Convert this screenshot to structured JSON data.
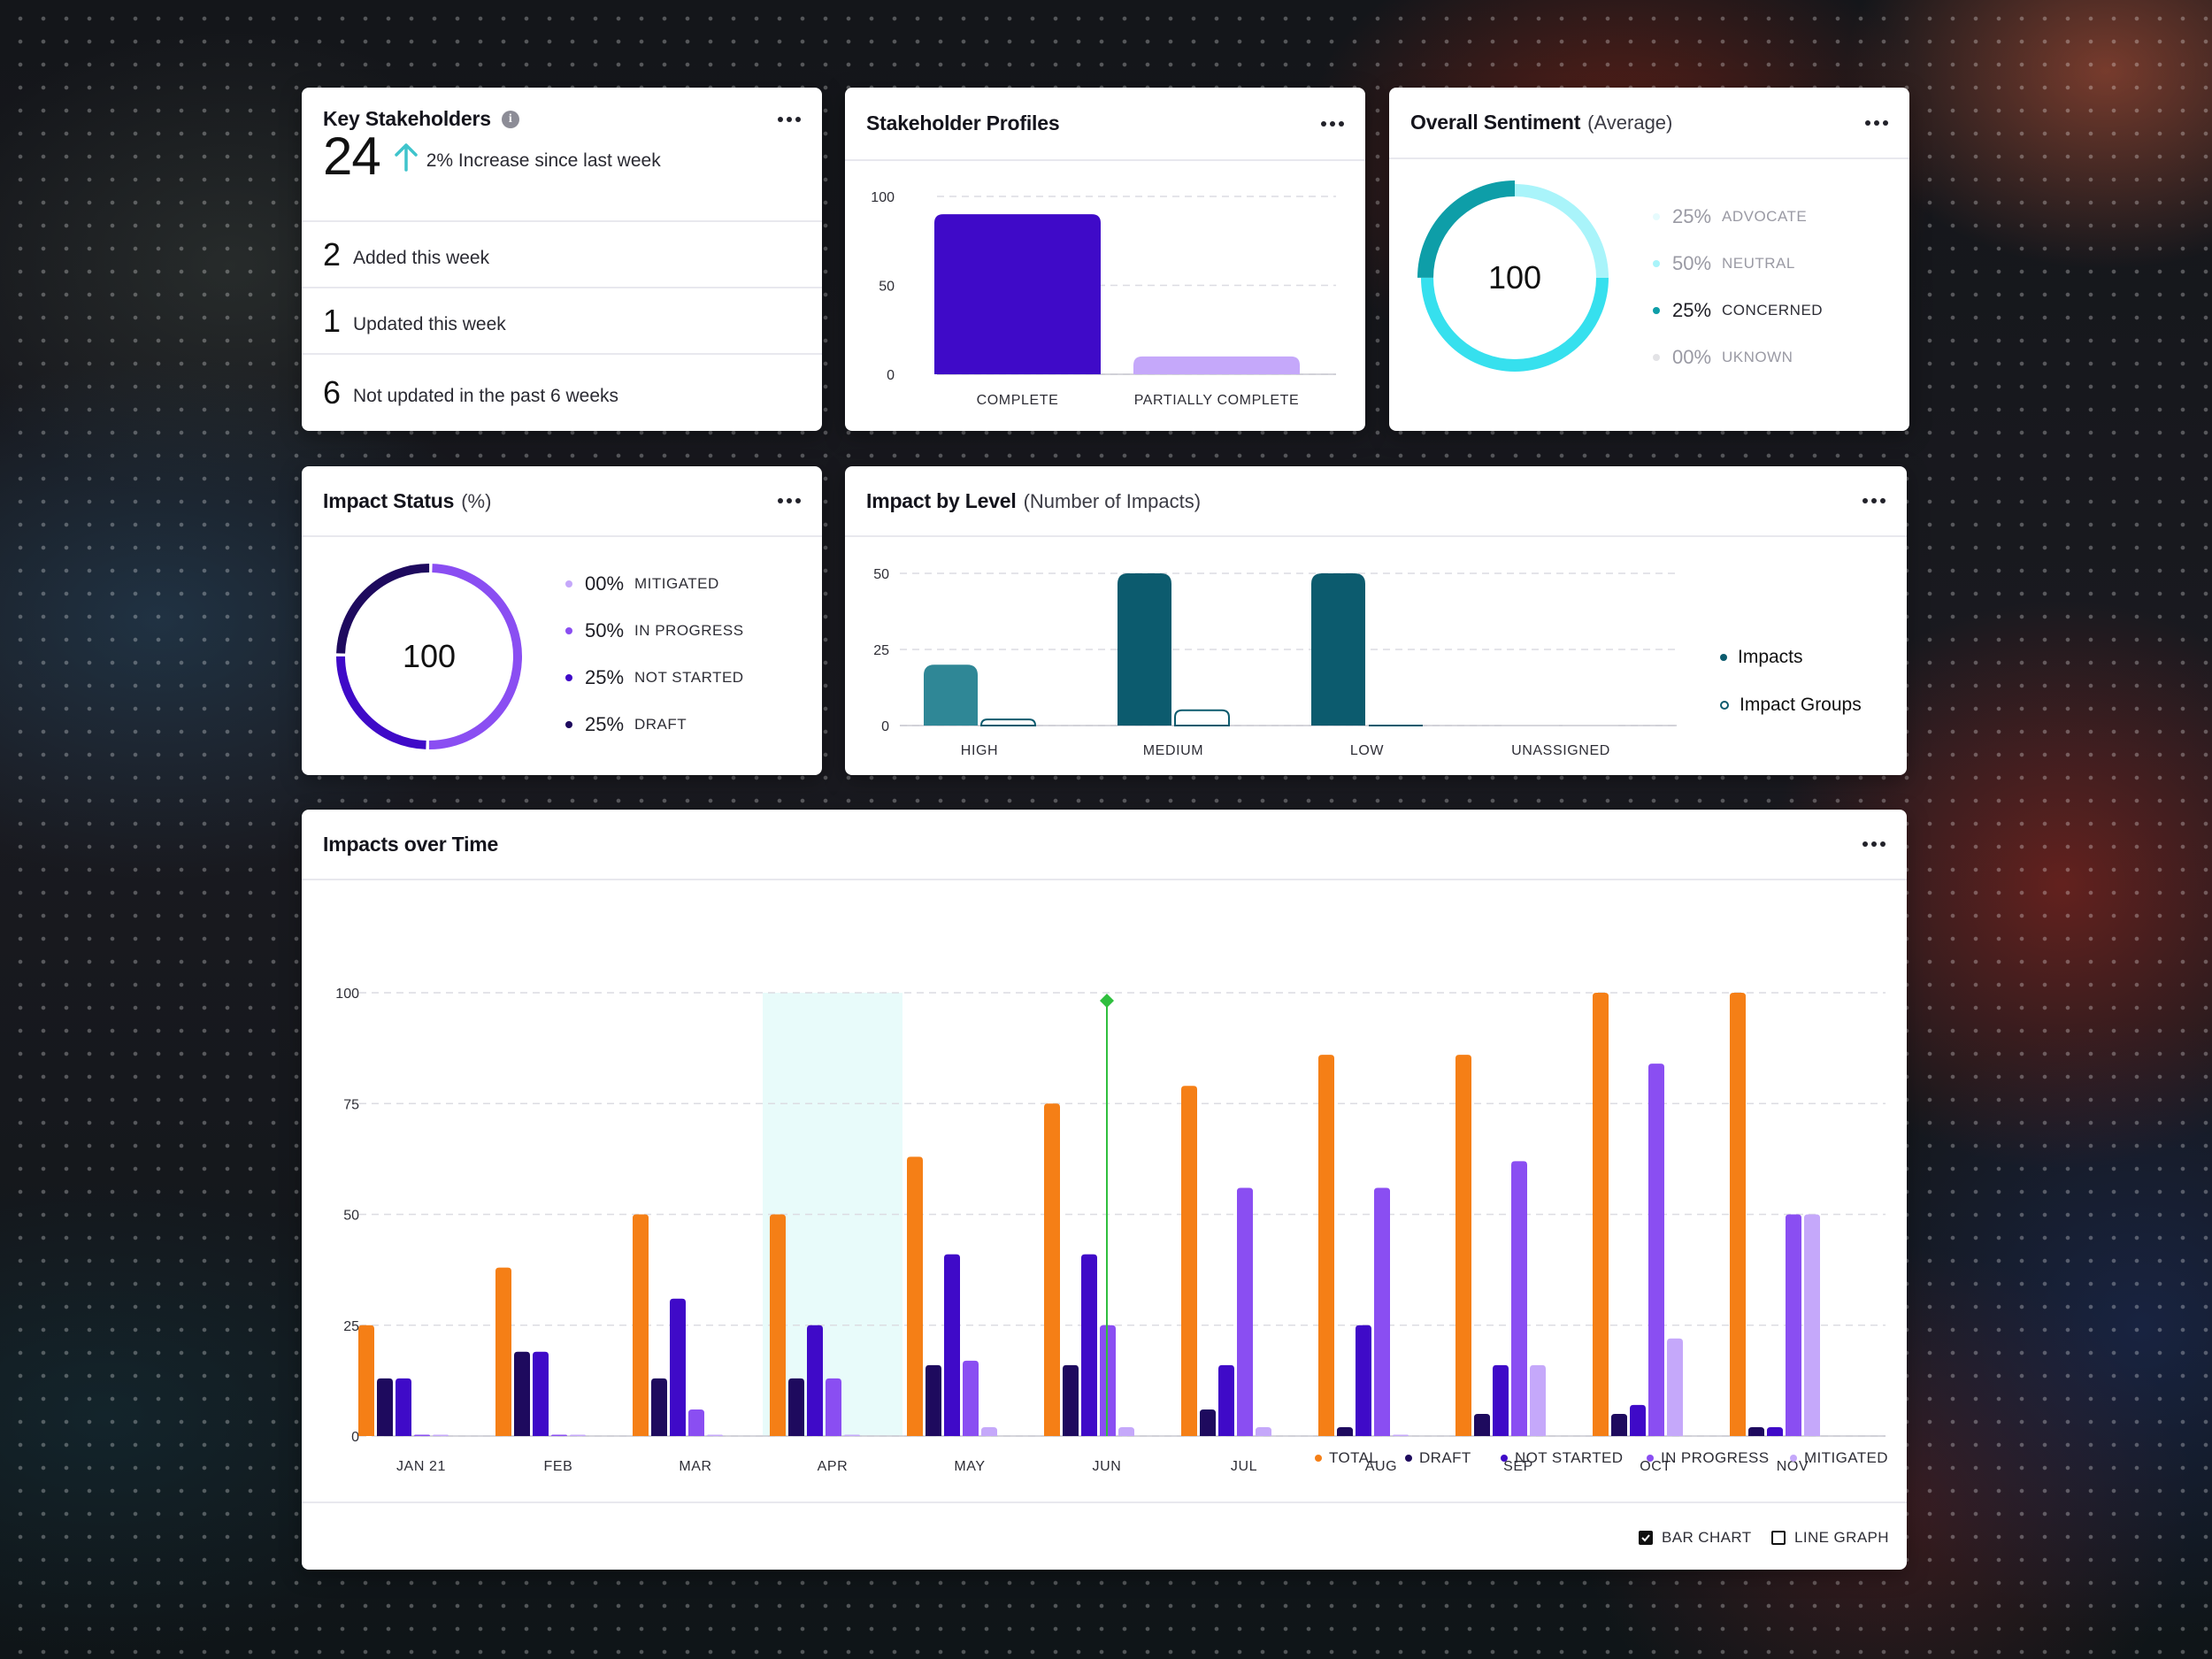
{
  "colors": {
    "total": "#f57f16",
    "draft": "#1e0a5e",
    "not_started": "#3f0ac8",
    "in_progress": "#8a4ef2",
    "mitigated": "#c5a8fa",
    "teal_dark": "#0c5b6e",
    "teal_mid": "#2f8796",
    "cyan": "#36e0ee",
    "cyan_light": "#a9f4fa",
    "sentiment_concerned": "#0e9ea8",
    "arrow": "#3fc4cc",
    "highlight": "#e8fbfa",
    "marker": "#2fbf3e"
  },
  "key_stakeholders": {
    "title": "Key Stakeholders",
    "info_icon": "info-icon",
    "count": "24",
    "increase_text": "2% Increase since last week",
    "rows": [
      {
        "num": "2",
        "text": "Added this week"
      },
      {
        "num": "1",
        "text": "Updated this week"
      },
      {
        "num": "6",
        "text": "Not updated in the past 6 weeks"
      }
    ]
  },
  "stakeholder_profiles": {
    "title": "Stakeholder Profiles",
    "chart_data": {
      "type": "bar",
      "categories": [
        "COMPLETE",
        "PARTIALLY COMPLETE"
      ],
      "values": [
        90,
        10
      ],
      "yticks": [
        "100",
        "50",
        "0"
      ],
      "ylim": [
        0,
        100
      ],
      "bar_colors": [
        "#3f0ac8",
        "#c5a8fa"
      ]
    }
  },
  "overall_sentiment": {
    "title": "Overall Sentiment",
    "subtitle": "(Average)",
    "center": "100",
    "legend": [
      {
        "value": "25%",
        "label": "ADVOCATE",
        "color": "#e6fbfd",
        "muted": true
      },
      {
        "value": "50%",
        "label": "NEUTRAL",
        "color": "#a9f4fa",
        "muted": true
      },
      {
        "value": "25%",
        "label": "CONCERNED",
        "color": "#0e9ea8",
        "muted": false
      },
      {
        "value": "00%",
        "label": "UKNOWN",
        "color": "#e3e3e6",
        "muted": true
      }
    ]
  },
  "impact_status": {
    "title": "Impact Status",
    "subtitle": "(%)",
    "center": "100",
    "legend": [
      {
        "value": "00%",
        "label": "MITIGATED",
        "color": "#c5a8fa"
      },
      {
        "value": "50%",
        "label": "IN PROGRESS",
        "color": "#8a4ef2"
      },
      {
        "value": "25%",
        "label": "NOT STARTED",
        "color": "#3f0ac8"
      },
      {
        "value": "25%",
        "label": "DRAFT",
        "color": "#1e0a5e"
      }
    ]
  },
  "impact_by_level": {
    "title": "Impact by Level",
    "subtitle": "(Number of Impacts)",
    "legend": [
      {
        "label": "Impacts",
        "filled": true
      },
      {
        "label": "Impact Groups",
        "filled": false
      }
    ],
    "chart_data": {
      "type": "bar",
      "categories": [
        "HIGH",
        "MEDIUM",
        "LOW",
        "UNASSIGNED"
      ],
      "yticks": [
        "50",
        "25",
        "0"
      ],
      "ylim": [
        0,
        50
      ],
      "series": [
        {
          "name": "Impacts",
          "values": [
            20,
            50,
            50,
            0
          ]
        },
        {
          "name": "Impact Groups",
          "values": [
            2,
            5,
            0,
            0
          ]
        }
      ]
    }
  },
  "impacts_over_time": {
    "title": "Impacts over Time",
    "highlighted_category": "APR",
    "marker_category": "JUN",
    "legend": [
      {
        "label": "TOTAL",
        "color": "#f57f16"
      },
      {
        "label": "DRAFT",
        "color": "#1e0a5e"
      },
      {
        "label": "NOT STARTED",
        "color": "#3f0ac8"
      },
      {
        "label": "IN PROGRESS",
        "color": "#8a4ef2"
      },
      {
        "label": "MITIGATED",
        "color": "#c5a8fa"
      }
    ],
    "toggles": [
      {
        "label": "BAR CHART",
        "checked": true
      },
      {
        "label": "LINE GRAPH",
        "checked": false
      }
    ],
    "chart_data": {
      "type": "bar",
      "categories": [
        "JAN 21",
        "FEB",
        "MAR",
        "APR",
        "MAY",
        "JUN",
        "JUL",
        "AUG",
        "SEP",
        "OCT",
        "NOV"
      ],
      "yticks": [
        "100",
        "75",
        "50",
        "25",
        "0"
      ],
      "ylim": [
        0,
        100
      ],
      "series": [
        {
          "name": "TOTAL",
          "values": [
            25,
            38,
            50,
            50,
            63,
            75,
            79,
            86,
            86,
            100,
            100
          ]
        },
        {
          "name": "DRAFT",
          "values": [
            13,
            19,
            13,
            13,
            16,
            16,
            6,
            2,
            5,
            5,
            2
          ]
        },
        {
          "name": "NOT STARTED",
          "values": [
            13,
            19,
            31,
            25,
            41,
            41,
            16,
            25,
            16,
            7,
            2
          ]
        },
        {
          "name": "IN PROGRESS",
          "values": [
            0,
            0,
            6,
            13,
            17,
            25,
            56,
            56,
            62,
            84,
            50
          ]
        },
        {
          "name": "MITIGATED",
          "values": [
            0,
            0,
            0,
            0,
            2,
            2,
            2,
            0,
            16,
            22,
            50
          ]
        }
      ]
    }
  }
}
